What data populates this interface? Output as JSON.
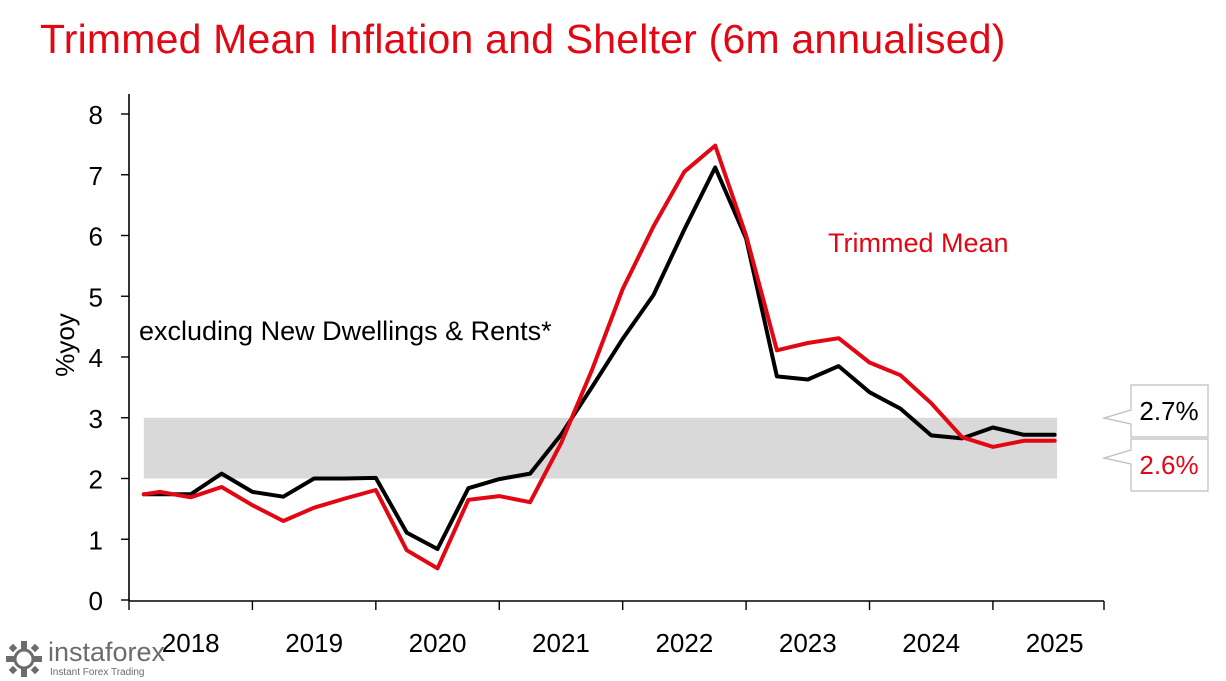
{
  "title": "Trimmed Mean Inflation and Shelter (6m annualised)",
  "logo": {
    "name": "instaforex",
    "tagline": "Instant Forex Trading"
  },
  "colors": {
    "title": "#e30613",
    "trimmed_mean": "#e30613",
    "excl_shelter": "#000000",
    "band": "#d9d9d9",
    "logo": "#6c6c6c"
  },
  "chart_data": {
    "type": "line",
    "title": "Trimmed Mean Inflation and Shelter (6m annualised)",
    "ylabel": "%yoy",
    "xlabel": "",
    "ylim": [
      0,
      8
    ],
    "yticks": [
      "0",
      "1",
      "2",
      "3",
      "4",
      "5",
      "6",
      "7",
      "8"
    ],
    "xlim": [
      2017.5,
      2025.4
    ],
    "xticks": [
      2017.5,
      2018.5,
      2019.5,
      2020.5,
      2021.5,
      2022.5,
      2023.5,
      2024.5,
      2025.4
    ],
    "xlabels": [
      {
        "label": "2018",
        "x": 2018.0
      },
      {
        "label": "2019",
        "x": 2019.0
      },
      {
        "label": "2020",
        "x": 2020.0
      },
      {
        "label": "2021",
        "x": 2021.0
      },
      {
        "label": "2022",
        "x": 2022.0
      },
      {
        "label": "2023",
        "x": 2023.0
      },
      {
        "label": "2024",
        "x": 2024.0
      },
      {
        "label": "2025",
        "x": 2025.0
      }
    ],
    "target_band": [
      2,
      3
    ],
    "band_x": [
      2017.62,
      2025.02
    ],
    "x": [
      2017.62,
      2017.75,
      2018.0,
      2018.25,
      2018.5,
      2018.75,
      2019.0,
      2019.25,
      2019.5,
      2019.75,
      2020.0,
      2020.25,
      2020.5,
      2020.75,
      2021.0,
      2021.25,
      2021.5,
      2021.75,
      2022.0,
      2022.25,
      2022.5,
      2022.75,
      2023.0,
      2023.25,
      2023.5,
      2023.75,
      2024.0,
      2024.25,
      2024.5,
      2024.75,
      2025.0
    ],
    "series": [
      {
        "name": "excluding New Dwellings & Rents*",
        "color": "#000000",
        "values": [
          1.74,
          1.74,
          1.74,
          2.08,
          1.78,
          1.7,
          2.0,
          2.0,
          2.01,
          1.11,
          0.84,
          1.84,
          1.99,
          2.08,
          2.72,
          3.5,
          4.3,
          5.02,
          6.1,
          7.12,
          5.95,
          3.68,
          3.63,
          3.85,
          3.42,
          3.15,
          2.71,
          2.66,
          2.84,
          2.72,
          2.72
        ]
      },
      {
        "name": "Trimmed Mean",
        "color": "#e30613",
        "values": [
          1.74,
          1.78,
          1.69,
          1.86,
          1.56,
          1.3,
          1.52,
          1.67,
          1.81,
          0.82,
          0.52,
          1.65,
          1.71,
          1.61,
          2.58,
          3.78,
          5.12,
          6.15,
          7.05,
          7.48,
          6.0,
          4.11,
          4.23,
          4.31,
          3.91,
          3.7,
          3.24,
          2.68,
          2.52,
          2.62,
          2.62
        ]
      }
    ],
    "annotations": {
      "black_label": "excluding New Dwellings & Rents*",
      "red_label": "Trimmed Mean",
      "callout_black": "2.7%",
      "callout_red": "2.6%"
    }
  }
}
